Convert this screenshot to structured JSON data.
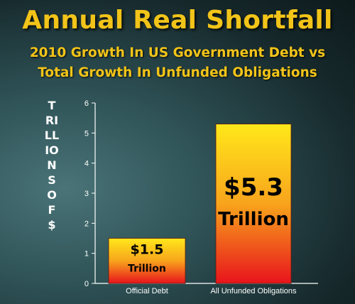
{
  "chart_data": {
    "type": "bar",
    "title": "Annual Real Shortfall",
    "subtitle_lines": [
      "2010 Growth In US Government Debt vs",
      "Total Growth In Unfunded Obligations"
    ],
    "ylabel": "TRILLIONS OF $",
    "xlabel": "",
    "categories": [
      "Official Debt",
      "All Unfunded Obligations"
    ],
    "values": [
      1.5,
      5.3
    ],
    "data_labels": [
      {
        "amount": "$1.5",
        "unit": "Trillion"
      },
      {
        "amount": "$5.3",
        "unit": "Trillion"
      }
    ],
    "ylim": [
      0,
      6
    ],
    "yticks": [
      0,
      1,
      2,
      3,
      4,
      5,
      6
    ],
    "grid": false,
    "colors": {
      "title": "#f2c419",
      "bar_top": "#ffe81a",
      "bar_bottom": "#e8141c",
      "axis": "#ffffff"
    }
  }
}
